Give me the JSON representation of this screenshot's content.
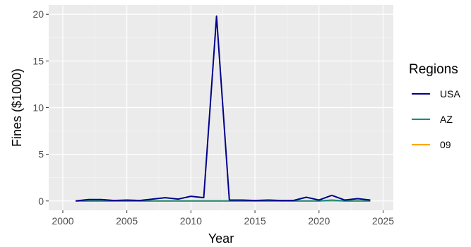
{
  "chart_data": {
    "type": "line",
    "title": "",
    "xlabel": "Year",
    "ylabel": "Fines ($1000)",
    "xlim": [
      2000,
      2025
    ],
    "ylim": [
      0,
      20
    ],
    "x_ticks": [
      2000,
      2005,
      2010,
      2015,
      2020,
      2025
    ],
    "y_ticks": [
      0,
      5,
      10,
      15,
      20
    ],
    "grid": true,
    "legend": {
      "title": "Regions",
      "position": "right"
    },
    "x": [
      2001,
      2002,
      2003,
      2004,
      2005,
      2006,
      2007,
      2008,
      2009,
      2010,
      2011,
      2012,
      2013,
      2014,
      2015,
      2016,
      2017,
      2018,
      2019,
      2020,
      2021,
      2022,
      2023,
      2024
    ],
    "series": [
      {
        "name": "USA",
        "color": "#00008B",
        "values": [
          0.0,
          0.15,
          0.15,
          0.05,
          0.1,
          0.05,
          0.2,
          0.35,
          0.2,
          0.5,
          0.35,
          19.8,
          0.1,
          0.1,
          0.05,
          0.1,
          0.05,
          0.05,
          0.4,
          0.1,
          0.6,
          0.1,
          0.25,
          0.1
        ]
      },
      {
        "name": "AZ",
        "color": "#1B8A78",
        "values": [
          0.0,
          0.0,
          0.0,
          0.0,
          0.0,
          0.0,
          0.0,
          0.0,
          0.0,
          0.0,
          0.0,
          0.0,
          0.0,
          0.0,
          0.0,
          0.0,
          0.0,
          0.0,
          0.0,
          0.0,
          0.1,
          0.0,
          0.0,
          0.0
        ]
      },
      {
        "name": "09",
        "color": "#FFA500",
        "values": [
          0.0,
          0.0,
          0.0,
          0.0,
          0.0,
          0.0,
          0.0,
          0.0,
          0.0,
          0.0,
          0.0,
          0.0,
          0.0,
          0.0,
          0.0,
          0.0,
          0.0,
          0.0,
          0.0,
          0.0,
          0.0,
          0.0,
          0.0,
          0.0
        ]
      }
    ]
  },
  "colors": {
    "panel_background": "#EBEBEB",
    "major_grid": "#FFFFFF",
    "tick_mark": "#333333"
  }
}
